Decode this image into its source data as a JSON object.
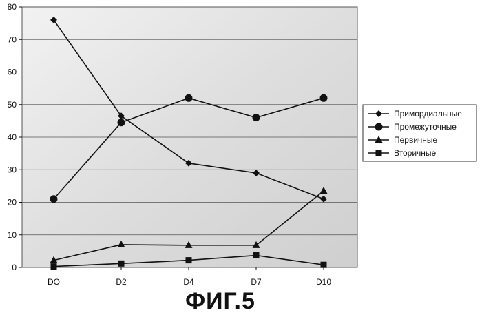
{
  "chart_data": {
    "type": "line",
    "categories": [
      "DO",
      "D2",
      "D4",
      "D7",
      "D10"
    ],
    "ylim": [
      0,
      80
    ],
    "yticks": [
      0,
      10,
      20,
      30,
      40,
      50,
      60,
      70,
      80
    ],
    "grid": true,
    "legend_position": "right",
    "series": [
      {
        "name": "Примордиальные",
        "marker": "diamond",
        "values": [
          76,
          46.5,
          32,
          29,
          21
        ]
      },
      {
        "name": "Промежуточные",
        "marker": "circle",
        "values": [
          21,
          44.5,
          52,
          46,
          52
        ]
      },
      {
        "name": "Первичные",
        "marker": "triangle",
        "values": [
          2.2,
          7,
          6.8,
          6.8,
          23.5
        ]
      },
      {
        "name": "Вторичные",
        "marker": "square",
        "values": [
          0.3,
          1.2,
          2.2,
          3.7,
          0.8
        ]
      }
    ]
  },
  "caption": "ФИГ.5",
  "colors": {
    "line": "#111111",
    "plot_background": "#e2e2e2",
    "gridline": "#555555"
  }
}
